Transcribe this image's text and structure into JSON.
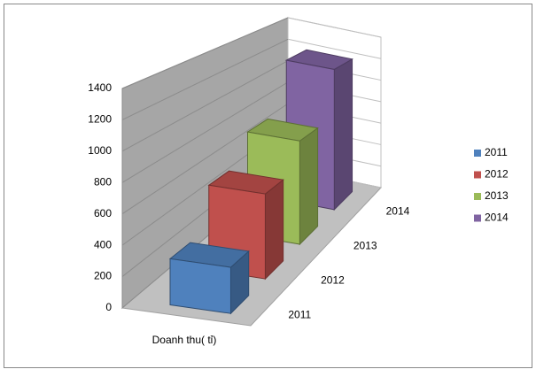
{
  "chart_data": {
    "type": "bar3d",
    "categories": [
      "Doanh thu( tỉ)"
    ],
    "series": [
      {
        "name": "2011",
        "color": "#4f81bd",
        "values": [
          300
        ]
      },
      {
        "name": "2012",
        "color": "#c0504d",
        "values": [
          600
        ]
      },
      {
        "name": "2013",
        "color": "#9bbb59",
        "values": [
          800
        ]
      },
      {
        "name": "2014",
        "color": "#8064a2",
        "values": [
          1200
        ]
      }
    ],
    "ylim": [
      0,
      1400
    ],
    "yticks": [
      0,
      200,
      400,
      600,
      800,
      1000,
      1200,
      1400
    ],
    "grid": true,
    "legend": "right"
  }
}
